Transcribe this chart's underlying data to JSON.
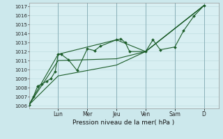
{
  "xlabel": "Pression niveau de la mer( hPa )",
  "bg_color": "#cce8ec",
  "plot_bg": "#d8eff2",
  "grid_color": "#b8d8dc",
  "line_color": "#1a5c28",
  "yticks": [
    1006,
    1007,
    1008,
    1009,
    1010,
    1011,
    1012,
    1013,
    1014,
    1015,
    1016,
    1017
  ],
  "ylim": [
    1005.7,
    1017.4
  ],
  "day_labels": [
    "Lun",
    "Mer",
    "Jeu",
    "Ven",
    "Sam",
    "D"
  ],
  "day_positions": [
    2,
    4,
    6,
    8,
    10,
    12
  ],
  "xlim": [
    0,
    13
  ],
  "series1_x": [
    0.0,
    0.3,
    0.6,
    0.9,
    1.2,
    1.5,
    1.8,
    2.0,
    2.2,
    2.7,
    3.3,
    4.0,
    4.5,
    4.9,
    6.0,
    6.3,
    6.6,
    6.9,
    8.0,
    8.5,
    9.0,
    10.0,
    10.6,
    11.3,
    12.0
  ],
  "series1_y": [
    1006.1,
    1007.0,
    1008.2,
    1008.4,
    1008.7,
    1009.0,
    1009.8,
    1011.7,
    1011.7,
    1011.1,
    1009.9,
    1012.3,
    1012.1,
    1012.6,
    1013.3,
    1013.4,
    1013.0,
    1012.0,
    1012.0,
    1013.3,
    1012.2,
    1012.5,
    1014.3,
    1015.9,
    1017.1
  ],
  "series2_x": [
    0.0,
    2.0,
    6.0,
    8.0,
    12.0
  ],
  "series2_y": [
    1006.1,
    1011.7,
    1013.3,
    1012.0,
    1017.1
  ],
  "series3_x": [
    0.0,
    2.0,
    6.0,
    8.0,
    12.0
  ],
  "series3_y": [
    1006.1,
    1011.0,
    1011.2,
    1012.0,
    1017.1
  ],
  "series4_x": [
    0.0,
    2.0,
    6.0,
    8.0,
    12.0
  ],
  "series4_y": [
    1006.1,
    1009.3,
    1010.5,
    1012.0,
    1017.1
  ]
}
